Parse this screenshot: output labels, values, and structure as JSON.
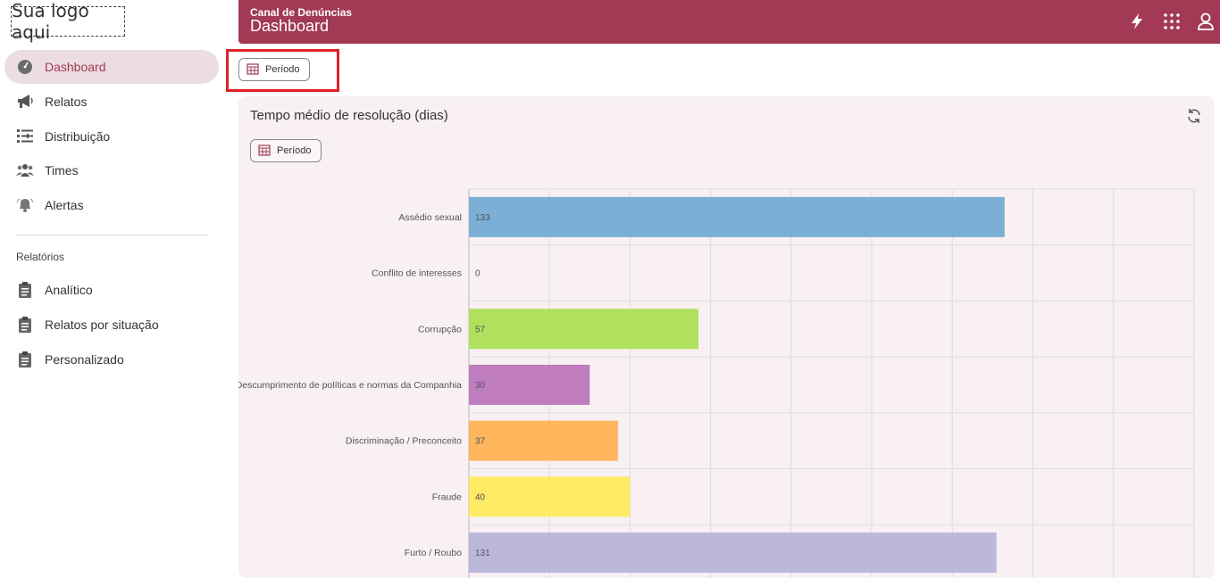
{
  "logo": "Sua logo aqui",
  "sidebar": {
    "items": [
      {
        "label": "Dashboard",
        "icon": "gauge-icon",
        "active": true
      },
      {
        "label": "Relatos",
        "icon": "megaphone-icon",
        "active": false
      },
      {
        "label": "Distribuição",
        "icon": "list-settings-icon",
        "active": false
      },
      {
        "label": "Times",
        "icon": "team-icon",
        "active": false
      },
      {
        "label": "Alertas",
        "icon": "bell-icon",
        "active": false
      }
    ],
    "section_label": "Relatórios",
    "reports": [
      {
        "label": "Analítico",
        "icon": "clipboard-icon"
      },
      {
        "label": "Relatos por situação",
        "icon": "clipboard-icon"
      },
      {
        "label": "Personalizado",
        "icon": "clipboard-icon"
      }
    ]
  },
  "topbar": {
    "subtitle": "Canal de Denúncias",
    "title": "Dashboard",
    "icons": [
      "lightning-icon",
      "apps-grid-icon",
      "user-icon"
    ]
  },
  "filter": {
    "period_label": "Período"
  },
  "card": {
    "title": "Tempo médio de resolução (dias)",
    "period_label": "Período"
  },
  "colors": {
    "accent": "#a23a55",
    "active_bg": "#ecdde2",
    "highlight": "#e0212b"
  },
  "chart_data": {
    "type": "bar",
    "orientation": "horizontal",
    "categories": [
      "Assédio sexual",
      "Conflito de interesses",
      "Corrupção",
      "Descumprimento de políticas e normas da Companhia",
      "Discriminação / Preconceito",
      "Fraude",
      "Furto / Roubo"
    ],
    "values": [
      133,
      0,
      57,
      30,
      37,
      40,
      131
    ],
    "colors": [
      "#7bafd6",
      "#cccccc",
      "#afe05e",
      "#bf7dc0",
      "#ffb65c",
      "#ffeb66",
      "#bcb8da"
    ],
    "xlim": [
      0,
      180
    ],
    "grid": true
  }
}
